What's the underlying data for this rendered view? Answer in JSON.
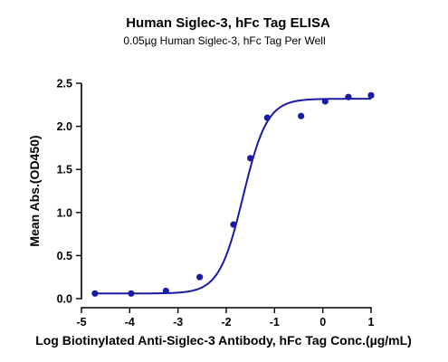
{
  "chart_data": {
    "type": "scatter",
    "title": "Human Siglec-3, hFc Tag ELISA",
    "subtitle": "0.05µg Human Siglec-3, hFc Tag Per Well",
    "xlabel": "Log Biotinylated Anti-Siglec-3 Antibody, hFc Tag Conc.(µg/mL)",
    "ylabel": "Mean Abs.(OD450)",
    "xlim": [
      -5,
      1
    ],
    "ylim": [
      0,
      2.5
    ],
    "x_ticks": [
      -5,
      -4,
      -3,
      -2,
      -1,
      0,
      1
    ],
    "y_ticks": [
      0.0,
      0.5,
      1.0,
      1.5,
      2.0,
      2.5
    ],
    "x_tick_labels": [
      "-5",
      "-4",
      "-3",
      "-2",
      "-1",
      "0",
      "1"
    ],
    "y_tick_labels": [
      "0.0",
      "0.5",
      "1.0",
      "1.5",
      "2.0",
      "2.5"
    ],
    "grid": false,
    "legend": "none",
    "series": [
      {
        "color": "#1a1aa6",
        "points": [
          {
            "x": -4.72,
            "y": 0.06
          },
          {
            "x": -3.97,
            "y": 0.06
          },
          {
            "x": -3.25,
            "y": 0.09
          },
          {
            "x": -2.55,
            "y": 0.25
          },
          {
            "x": -1.85,
            "y": 0.86
          },
          {
            "x": -1.5,
            "y": 1.63
          },
          {
            "x": -1.15,
            "y": 2.1
          },
          {
            "x": -0.45,
            "y": 2.12
          },
          {
            "x": 0.05,
            "y": 2.29
          },
          {
            "x": 0.53,
            "y": 2.34
          },
          {
            "x": 1.0,
            "y": 2.36
          }
        ],
        "fit": {
          "model": "4PL",
          "bottom": 0.06,
          "top": 2.32,
          "logEC50": -1.65,
          "hill": 1.75
        }
      }
    ]
  }
}
